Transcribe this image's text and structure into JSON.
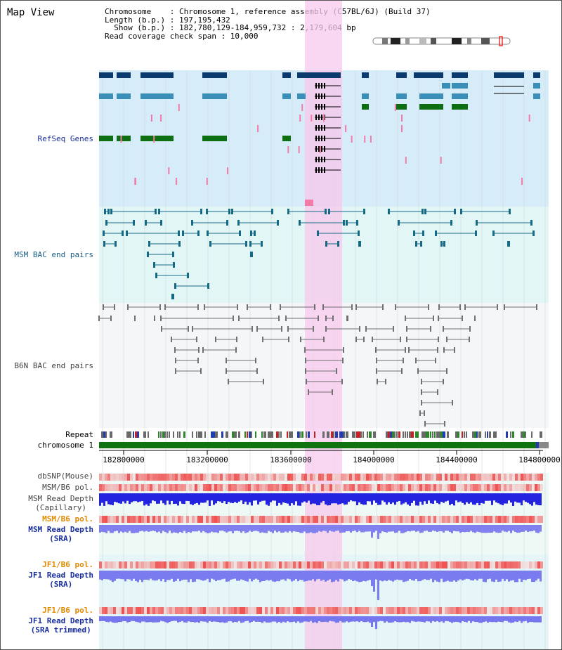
{
  "title": "Map View",
  "info": {
    "chromosome": "Chromosome    : Chromosome 1, reference assembly (C57BL/6J) (Build 37)",
    "length": "Length (b.p.) : 197,195,432",
    "show": "  Show (b.p.) : 182,780,129-184,959,732 : 2,179,604 bp",
    "span": "Read coverage check span : 10,000"
  },
  "tracks": {
    "refseq": "RefSeq Genes",
    "msm_bac": "MSM BAC end pairs",
    "b6n_bac": "B6N BAC end pairs",
    "repeat": "Repeat",
    "chromosome": "chromosome 1",
    "dbsnp": "dbSNP(Mouse)",
    "msm_pol": "MSM/B6 pol.",
    "msm_depth_cap_1": "MSM Read Depth",
    "msm_depth_cap_2": "(Capillary)",
    "msm_pol2": "MSM/B6 pol.",
    "msm_depth_sra_1": "MSM Read Depth",
    "msm_depth_sra_2": "(SRA)",
    "jf1_pol": "JF1/B6 pol.",
    "jf1_depth_1": "JF1 Read Depth",
    "jf1_depth_2": "(SRA)",
    "jf1_pol2": "JF1/B6 pol.",
    "jf1_trim_1": "JF1 Read Depth",
    "jf1_trim_2": "(SRA trimmed)"
  },
  "axis_ticks": [
    "182800000",
    "183200000",
    "183600000",
    "184000000",
    "184400000",
    "184800000"
  ],
  "colors": {
    "refseq_bg": "#d6ecf8",
    "msm_bac_bg": "#e2f6f6",
    "b6n_bac_bg": "#f5f6f8",
    "highlight": "#f7c8ec",
    "gene_dark": "#0a3a6e",
    "gene_mid": "#3a8fb8",
    "gene_green": "#0e6e12",
    "msm_line": "#166a86",
    "b6n_line": "#707070",
    "label_blue": "#1a2f9e",
    "label_teal": "#1b5c84",
    "label_orange": "#e08a00",
    "label_gray": "#444444"
  }
}
